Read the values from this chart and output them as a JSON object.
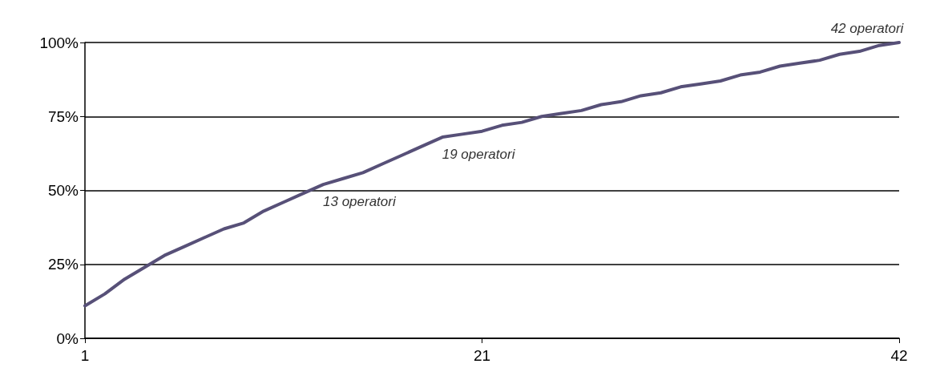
{
  "chart_data": {
    "type": "line",
    "x": [
      1,
      2,
      3,
      4,
      5,
      6,
      7,
      8,
      9,
      10,
      11,
      12,
      13,
      14,
      15,
      16,
      17,
      18,
      19,
      20,
      21,
      22,
      23,
      24,
      25,
      26,
      27,
      28,
      29,
      30,
      31,
      32,
      33,
      34,
      35,
      36,
      37,
      38,
      39,
      40,
      41,
      42
    ],
    "series": [
      {
        "color": "#575078",
        "values": [
          11,
          15,
          20,
          24,
          28,
          31,
          34,
          37,
          39,
          43,
          46,
          49,
          52,
          54,
          56,
          59,
          62,
          65,
          68,
          69,
          70,
          72,
          73,
          75,
          76,
          77,
          79,
          80,
          82,
          83,
          85,
          86,
          87,
          89,
          90,
          92,
          93,
          94,
          96,
          97,
          99,
          100
        ]
      }
    ],
    "xlim": [
      1,
      42
    ],
    "xticks": [
      1,
      21,
      42
    ],
    "ylim": [
      0,
      100
    ],
    "yticks": [
      {
        "value": 0,
        "label": "0%"
      },
      {
        "value": 25,
        "label": "25%"
      },
      {
        "value": 50,
        "label": "50%"
      },
      {
        "value": 75,
        "label": "75%"
      },
      {
        "value": 100,
        "label": "100%"
      }
    ],
    "annotations": [
      {
        "text": "13 operatori",
        "x": 13,
        "y": 52
      },
      {
        "text": "19 operatori",
        "x": 19,
        "y": 68
      },
      {
        "text": "42 operatori",
        "x": 42,
        "y": 100
      }
    ],
    "grid": "y",
    "marker": "none",
    "line_style": "solid"
  }
}
